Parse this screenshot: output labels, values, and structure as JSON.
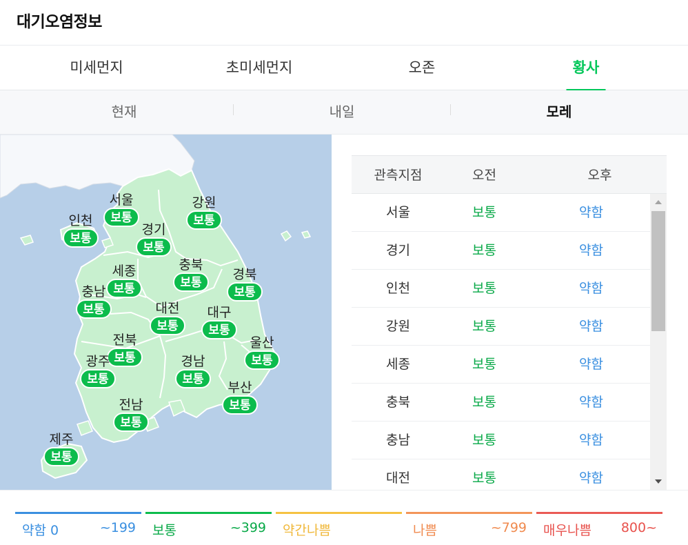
{
  "header": {
    "title": "대기오염정보"
  },
  "main_tabs": [
    {
      "label": "미세먼지",
      "active": false
    },
    {
      "label": "초미세먼지",
      "active": false
    },
    {
      "label": "오존",
      "active": false
    },
    {
      "label": "황사",
      "active": true
    }
  ],
  "sub_tabs": [
    {
      "label": "현재",
      "active": false
    },
    {
      "label": "내일",
      "active": false
    },
    {
      "label": "모레",
      "active": true
    }
  ],
  "map": {
    "regions": [
      {
        "name": "서울",
        "status": "보통"
      },
      {
        "name": "강원",
        "status": "보통"
      },
      {
        "name": "인천",
        "status": "보통"
      },
      {
        "name": "경기",
        "status": "보통"
      },
      {
        "name": "충북",
        "status": "보통"
      },
      {
        "name": "세종",
        "status": "보통"
      },
      {
        "name": "경북",
        "status": "보통"
      },
      {
        "name": "충남",
        "status": "보통"
      },
      {
        "name": "대전",
        "status": "보통"
      },
      {
        "name": "대구",
        "status": "보통"
      },
      {
        "name": "전북",
        "status": "보통"
      },
      {
        "name": "울산",
        "status": "보통"
      },
      {
        "name": "광주",
        "status": "보통"
      },
      {
        "name": "경남",
        "status": "보통"
      },
      {
        "name": "부산",
        "status": "보통"
      },
      {
        "name": "전남",
        "status": "보통"
      },
      {
        "name": "제주",
        "status": "보통"
      }
    ]
  },
  "table": {
    "headers": [
      "관측지점",
      "오전",
      "오후"
    ],
    "rows": [
      {
        "site": "서울",
        "am": "보통",
        "pm": "약함"
      },
      {
        "site": "경기",
        "am": "보통",
        "pm": "약함"
      },
      {
        "site": "인천",
        "am": "보통",
        "pm": "약함"
      },
      {
        "site": "강원",
        "am": "보통",
        "pm": "약함"
      },
      {
        "site": "세종",
        "am": "보통",
        "pm": "약함"
      },
      {
        "site": "충북",
        "am": "보통",
        "pm": "약함"
      },
      {
        "site": "충남",
        "am": "보통",
        "pm": "약함"
      },
      {
        "site": "대전",
        "am": "보통",
        "pm": "약함"
      }
    ]
  },
  "legend": [
    {
      "name": "약함 0",
      "value": "~199",
      "color": "#3a8fe0"
    },
    {
      "name": "보통",
      "value": "~399",
      "color": "#0cbc4c"
    },
    {
      "name": "약간나쁨",
      "value": "",
      "color": "#f5c242"
    },
    {
      "name": "나쁨",
      "value": "~799",
      "color": "#f39559"
    },
    {
      "name": "매우나쁨",
      "value": "800~",
      "color": "#ea5a55"
    }
  ],
  "colors": {
    "accent": "#03c75a",
    "good_text": "#09a948",
    "weak_text": "#3a8fe0",
    "badge": "#0cbc4c",
    "land": "#c8f0cf",
    "sea": "#b7cfe8"
  }
}
